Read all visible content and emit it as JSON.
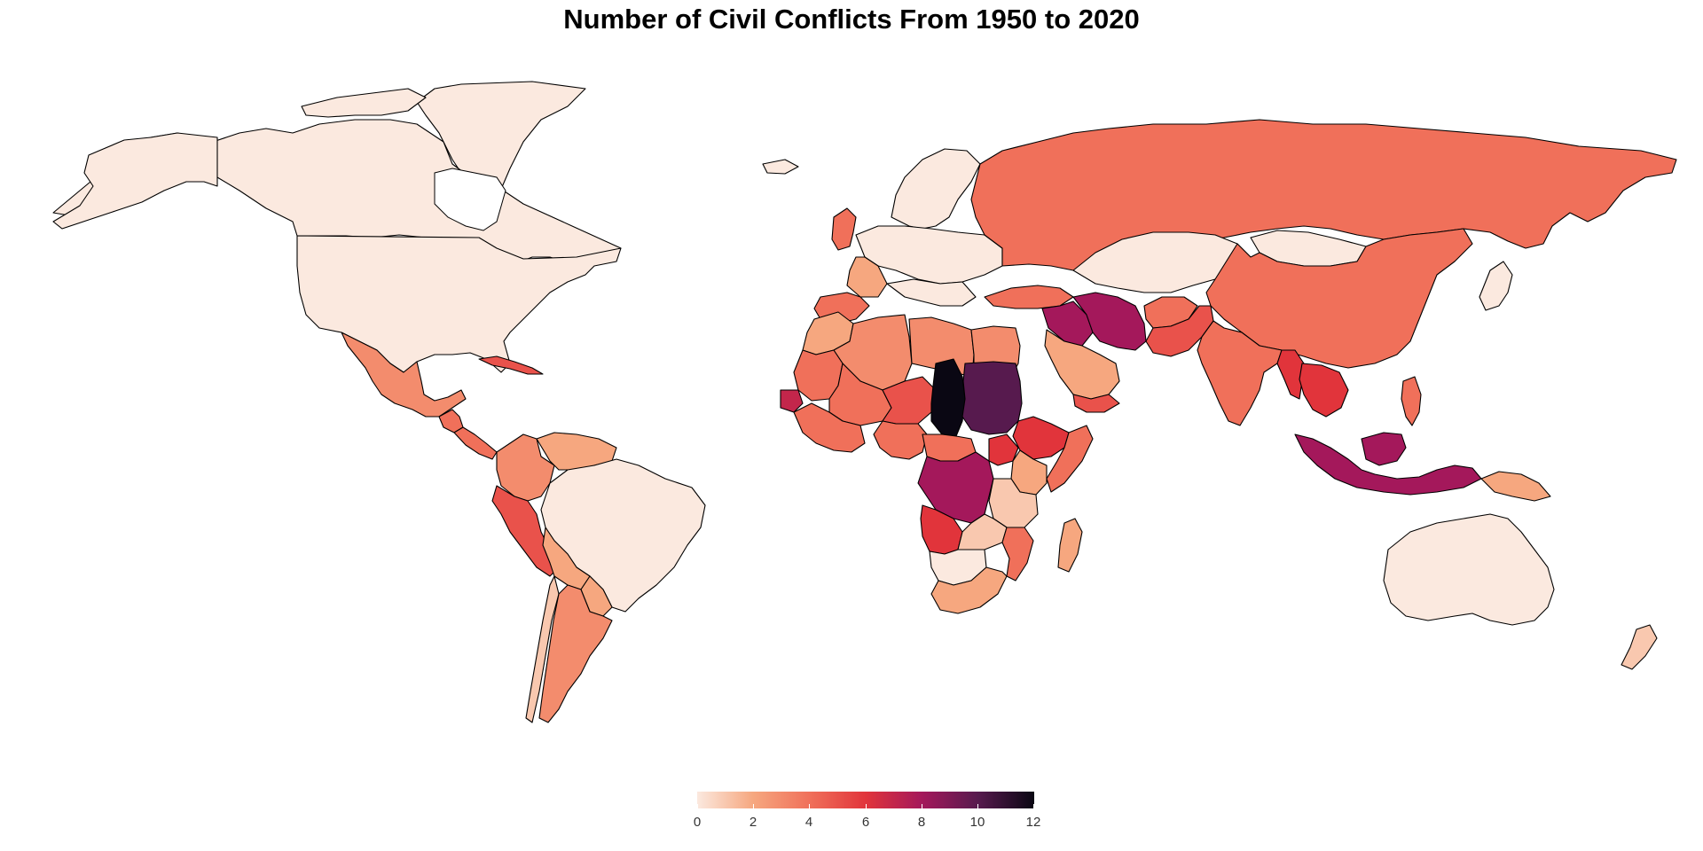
{
  "title": "Number of Civil Conflicts From 1950 to 2020",
  "legend": {
    "min": 0,
    "max": 12,
    "ticks": [
      "0",
      "2",
      "4",
      "6",
      "8",
      "10",
      "12"
    ],
    "colors": [
      "#fbe9df",
      "#f6a77f",
      "#f0705a",
      "#e1343b",
      "#a4185b",
      "#571a4e",
      "#0a0713"
    ]
  },
  "regions": [
    {
      "name": "Canada",
      "value": 0
    },
    {
      "name": "United States",
      "value": 0
    },
    {
      "name": "Greenland",
      "value": 0
    },
    {
      "name": "Mexico",
      "value": 3
    },
    {
      "name": "Guatemala",
      "value": 4
    },
    {
      "name": "Cuba",
      "value": 5
    },
    {
      "name": "Colombia",
      "value": 3
    },
    {
      "name": "Venezuela",
      "value": 2
    },
    {
      "name": "Peru",
      "value": 5
    },
    {
      "name": "Bolivia",
      "value": 2
    },
    {
      "name": "Brazil",
      "value": 0
    },
    {
      "name": "Argentina",
      "value": 3
    },
    {
      "name": "Chile",
      "value": 1
    },
    {
      "name": "United Kingdom",
      "value": 4
    },
    {
      "name": "Spain",
      "value": 4
    },
    {
      "name": "France",
      "value": 2
    },
    {
      "name": "Europe (other)",
      "value": 1
    },
    {
      "name": "Russia",
      "value": 4
    },
    {
      "name": "Kazakhstan",
      "value": 0
    },
    {
      "name": "Mongolia",
      "value": 0
    },
    {
      "name": "China",
      "value": 4
    },
    {
      "name": "Turkey",
      "value": 4
    },
    {
      "name": "Iraq",
      "value": 8
    },
    {
      "name": "Iran",
      "value": 8
    },
    {
      "name": "Saudi Arabia",
      "value": 2
    },
    {
      "name": "Yemen",
      "value": 5
    },
    {
      "name": "Afghanistan",
      "value": 4
    },
    {
      "name": "Pakistan",
      "value": 5
    },
    {
      "name": "India",
      "value": 4
    },
    {
      "name": "Myanmar",
      "value": 6
    },
    {
      "name": "Thailand",
      "value": 6
    },
    {
      "name": "Philippines",
      "value": 4
    },
    {
      "name": "Indonesia",
      "value": 8
    },
    {
      "name": "Papua New Guinea",
      "value": 2
    },
    {
      "name": "Australia",
      "value": 0
    },
    {
      "name": "New Zealand",
      "value": 1
    },
    {
      "name": "Morocco",
      "value": 2
    },
    {
      "name": "Algeria",
      "value": 3
    },
    {
      "name": "Libya",
      "value": 3
    },
    {
      "name": "Egypt",
      "value": 3
    },
    {
      "name": "Mali",
      "value": 4
    },
    {
      "name": "Niger",
      "value": 5
    },
    {
      "name": "Chad",
      "value": 12
    },
    {
      "name": "Sudan",
      "value": 10
    },
    {
      "name": "Ethiopia",
      "value": 6
    },
    {
      "name": "Somalia",
      "value": 4
    },
    {
      "name": "Senegal",
      "value": 7
    },
    {
      "name": "Nigeria",
      "value": 4
    },
    {
      "name": "Democratic Republic of the Congo",
      "value": 8
    },
    {
      "name": "Uganda",
      "value": 6
    },
    {
      "name": "Kenya",
      "value": 2
    },
    {
      "name": "Tanzania",
      "value": 1
    },
    {
      "name": "Angola",
      "value": 6
    },
    {
      "name": "Zambia",
      "value": 1
    },
    {
      "name": "Mozambique",
      "value": 4
    },
    {
      "name": "Namibia",
      "value": 0
    },
    {
      "name": "South Africa",
      "value": 2
    },
    {
      "name": "Madagascar",
      "value": 2
    }
  ]
}
